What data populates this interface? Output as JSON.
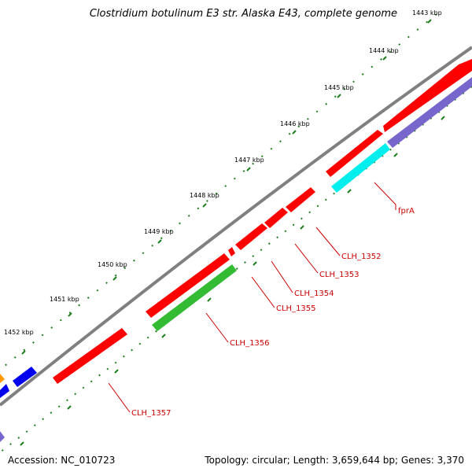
{
  "header": {
    "title": "Clostridium botulinum E3 str. Alaska E43, complete genome"
  },
  "footer": {
    "accession": "Accession: NC_010723",
    "summary": "Topology: circular; Length: 3,659,644 bp; Genes: 3,370"
  },
  "colors": {
    "background": "#ffffff",
    "backbone": "#808080",
    "tick": "#1e7d1e",
    "label_red": "#cc0000",
    "gene_red": "#ff0000",
    "gene_green": "#33bb33",
    "gene_cyan": "#00eeee",
    "gene_purple": "#7766cc",
    "gene_blue": "#0000ee",
    "gene_orange": "#ff9900"
  },
  "scale_labels": [
    "1443 kbp",
    "1444 kbp",
    "1445 kbp",
    "1446 kbp",
    "1447 kbp",
    "1448 kbp",
    "1449 kbp",
    "1450 kbp",
    "1451 kbp",
    "1452 kbp"
  ],
  "gene_labels": [
    "fprA",
    "CLH_1352",
    "CLH_1353",
    "CLH_1354",
    "CLH_1355",
    "CLH_1356",
    "CLH_1357"
  ]
}
